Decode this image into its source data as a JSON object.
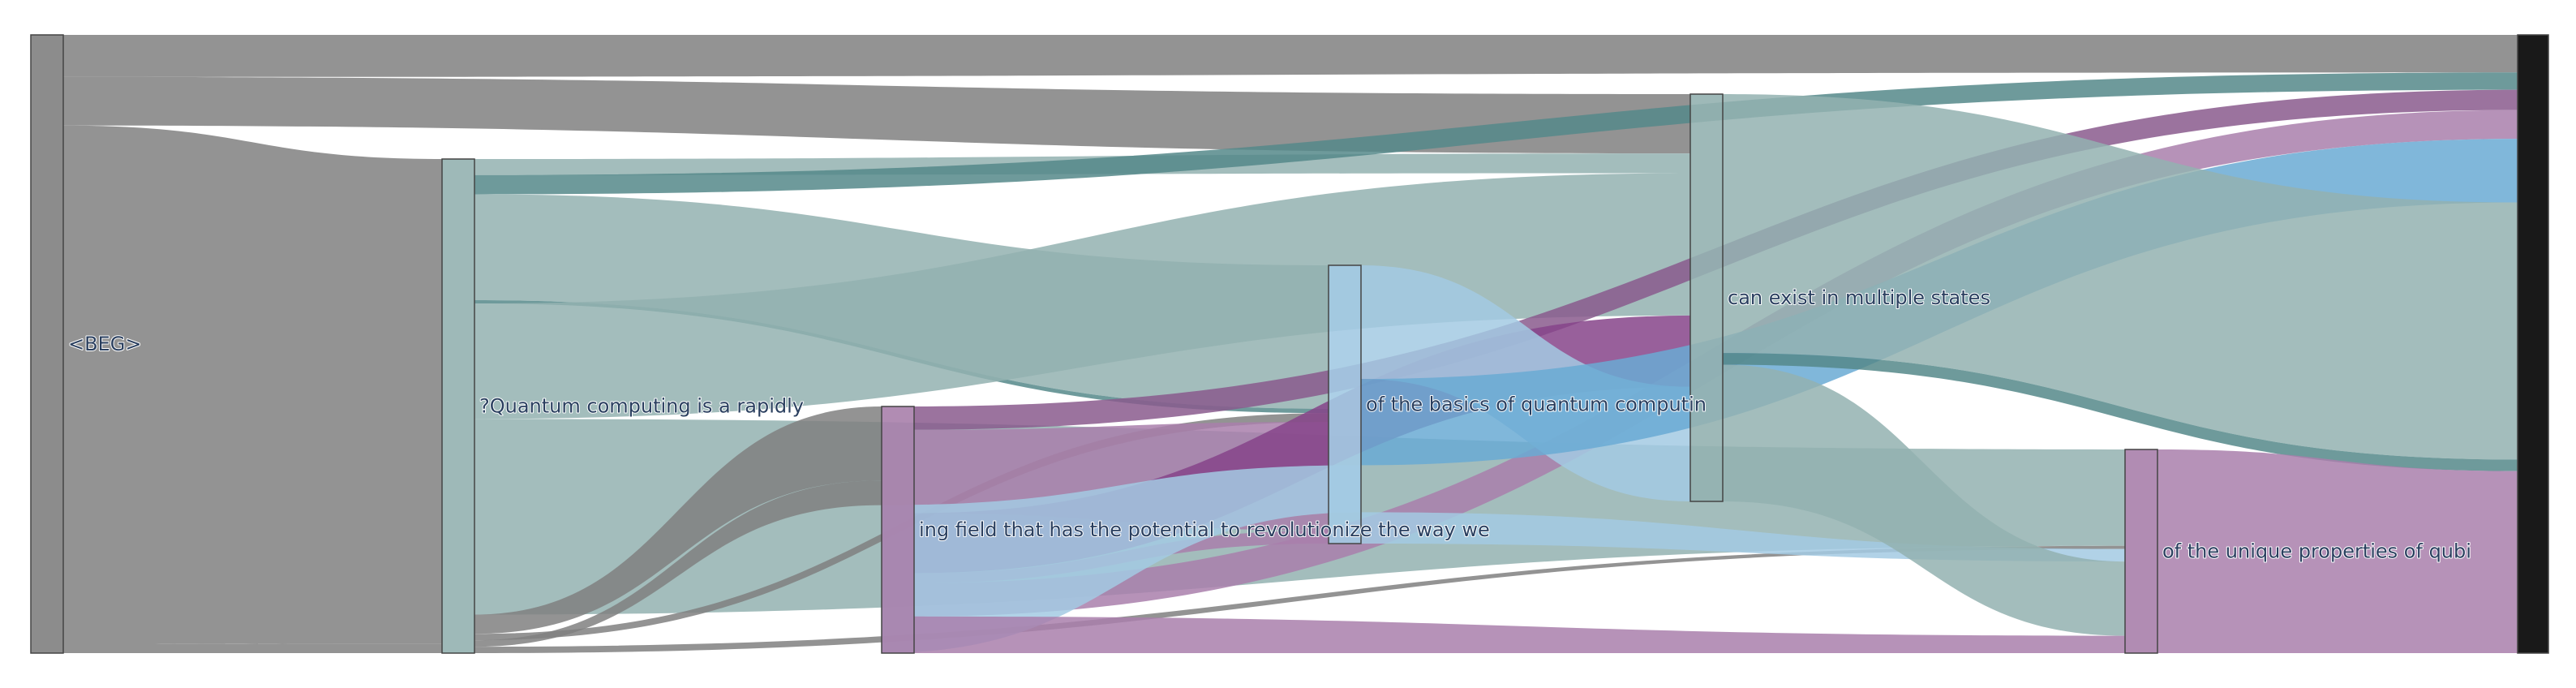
{
  "chart_data": {
    "type": "sankey",
    "nodes": [
      {
        "id": "beg",
        "label": "<BEG>",
        "color": "#808080"
      },
      {
        "id": "n1",
        "label": "?Quantum computing is a rapidly",
        "color": "#93b1b0"
      },
      {
        "id": "n2",
        "label": "ing field that has the potential to revolutionize the way we",
        "color": "#a97fab"
      },
      {
        "id": "n3",
        "label": "of the basics of quantum computin",
        "color": "#a3cae3"
      },
      {
        "id": "n4",
        "label": "can exist in multiple states",
        "color": "#93b1b0"
      },
      {
        "id": "n5",
        "label": "of the unique properties of qubi",
        "color": "#a97fab"
      },
      {
        "id": "end",
        "label": "",
        "color": "#000000"
      }
    ],
    "links": [
      {
        "source": "beg",
        "target": "end",
        "value": 13,
        "color": "#808080"
      },
      {
        "source": "beg",
        "target": "n4",
        "value": 15,
        "color": "#808080"
      },
      {
        "source": "beg",
        "target": "n1",
        "value": 160,
        "color": "#808080"
      },
      {
        "source": "beg",
        "target": "n1",
        "value": 3,
        "color": "#808080"
      },
      {
        "source": "n1",
        "target": "n4",
        "value": 5,
        "color": "#93b1b0"
      },
      {
        "source": "n1",
        "target": "end",
        "value": 6,
        "color": "#55888a"
      },
      {
        "source": "n1",
        "target": "n3",
        "value": 33,
        "color": "#93b1b0"
      },
      {
        "source": "n1",
        "target": "n3",
        "value": 1,
        "color": "#55888a"
      },
      {
        "source": "n1",
        "target": "n4",
        "value": 36,
        "color": "#93b1b0"
      },
      {
        "source": "n1",
        "target": "n5",
        "value": 61,
        "color": "#93b1b0"
      },
      {
        "source": "n1",
        "target": "n2",
        "value": 6,
        "color": "#808080"
      },
      {
        "source": "n1",
        "target": "n3",
        "value": 2,
        "color": "#808080"
      },
      {
        "source": "n1",
        "target": "n2",
        "value": 2,
        "color": "#808080"
      },
      {
        "source": "n1",
        "target": "n5",
        "value": 2,
        "color": "#808080"
      },
      {
        "source": "n2",
        "target": "end",
        "value": 7,
        "color": "#8a5a8d"
      },
      {
        "source": "n2",
        "target": "n3",
        "value": 25,
        "color": "#a97fab"
      },
      {
        "source": "n2",
        "target": "n4",
        "value": 18,
        "color": "#86448a"
      },
      {
        "source": "n2",
        "target": "n3",
        "value": 3,
        "color": "#a97fab"
      },
      {
        "source": "n2",
        "target": "end",
        "value": 10,
        "color": "#a97fab"
      },
      {
        "source": "n3",
        "target": "n4",
        "value": 29,
        "color": "#a3cae3"
      },
      {
        "source": "n3",
        "target": "end",
        "value": 22,
        "color": "#6aaad3"
      },
      {
        "source": "n3",
        "target": "n2",
        "value": 12,
        "color": "#a3cae3"
      },
      {
        "source": "n3",
        "target": "n5",
        "value": 8,
        "color": "#a3cae3"
      },
      {
        "source": "n4",
        "target": "end",
        "value": 89,
        "color": "#93b1b0"
      },
      {
        "source": "n4",
        "target": "end",
        "value": 4,
        "color": "#55888a"
      },
      {
        "source": "n4",
        "target": "n5",
        "value": 47,
        "color": "#93b1b0"
      },
      {
        "source": "n5",
        "target": "end",
        "value": 63,
        "color": "#a97fab"
      },
      {
        "source": "n2",
        "target": "n5",
        "value": 11,
        "color": "#a97fab"
      }
    ],
    "title": "",
    "legend": "none"
  }
}
